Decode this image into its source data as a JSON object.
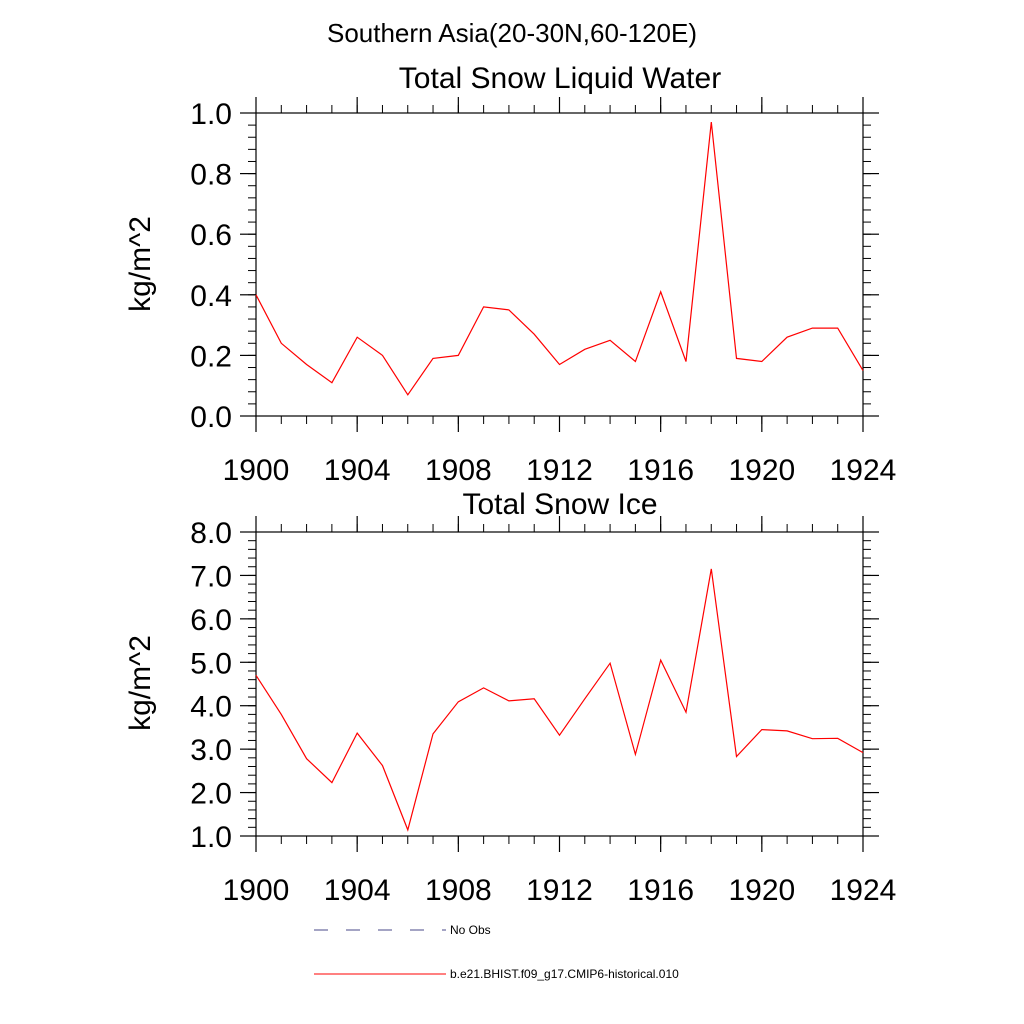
{
  "page_title": "Southern Asia(20-30N,60-120E)",
  "chart_data": [
    {
      "type": "line",
      "title": "Total Snow Liquid Water",
      "ylabel": "kg/m^2",
      "xlabel": "",
      "xlim": [
        1900,
        1924
      ],
      "ylim": [
        0.0,
        1.0
      ],
      "x_ticks": [
        "1900",
        "1904",
        "1908",
        "1912",
        "1916",
        "1920",
        "1924"
      ],
      "y_ticks": [
        "0.0",
        "0.2",
        "0.4",
        "0.6",
        "0.8",
        "1.0"
      ],
      "x": [
        1900,
        1901,
        1902,
        1903,
        1904,
        1905,
        1906,
        1907,
        1908,
        1909,
        1910,
        1911,
        1912,
        1913,
        1914,
        1915,
        1916,
        1917,
        1918,
        1919,
        1920,
        1921,
        1922,
        1923,
        1924
      ],
      "series": [
        {
          "name": "b.e21.BHIST.f09_g17.CMIP6-historical.010",
          "color": "#ff0000",
          "values": [
            0.4,
            0.24,
            0.17,
            0.11,
            0.26,
            0.2,
            0.07,
            0.19,
            0.2,
            0.36,
            0.35,
            0.27,
            0.17,
            0.22,
            0.25,
            0.18,
            0.41,
            0.18,
            0.97,
            0.19,
            0.18,
            0.26,
            0.29,
            0.29,
            0.15
          ]
        }
      ]
    },
    {
      "type": "line",
      "title": "Total Snow Ice",
      "ylabel": "kg/m^2",
      "xlabel": "",
      "xlim": [
        1900,
        1924
      ],
      "ylim": [
        1.0,
        8.0
      ],
      "x_ticks": [
        "1900",
        "1904",
        "1908",
        "1912",
        "1916",
        "1920",
        "1924"
      ],
      "y_ticks": [
        "1.0",
        "2.0",
        "3.0",
        "4.0",
        "5.0",
        "6.0",
        "7.0",
        "8.0"
      ],
      "x": [
        1900,
        1901,
        1902,
        1903,
        1904,
        1905,
        1906,
        1907,
        1908,
        1909,
        1910,
        1911,
        1912,
        1913,
        1914,
        1915,
        1916,
        1917,
        1918,
        1919,
        1920,
        1921,
        1922,
        1923,
        1924
      ],
      "series": [
        {
          "name": "b.e21.BHIST.f09_g17.CMIP6-historical.010",
          "color": "#ff0000",
          "values": [
            4.7,
            3.8,
            2.78,
            2.23,
            3.37,
            2.62,
            1.14,
            3.35,
            4.09,
            4.41,
            4.11,
            4.16,
            3.32,
            4.16,
            4.98,
            2.88,
            5.05,
            3.85,
            7.15,
            2.83,
            3.45,
            3.42,
            3.24,
            3.25,
            2.92
          ]
        }
      ]
    }
  ],
  "legend": {
    "position": "bottom",
    "entries": [
      {
        "label": "No Obs",
        "color": "#4a4a8a",
        "style": "dashed"
      },
      {
        "label": "b.e21.BHIST.f09_g17.CMIP6-historical.010",
        "color": "#ff0000",
        "style": "solid"
      }
    ]
  }
}
